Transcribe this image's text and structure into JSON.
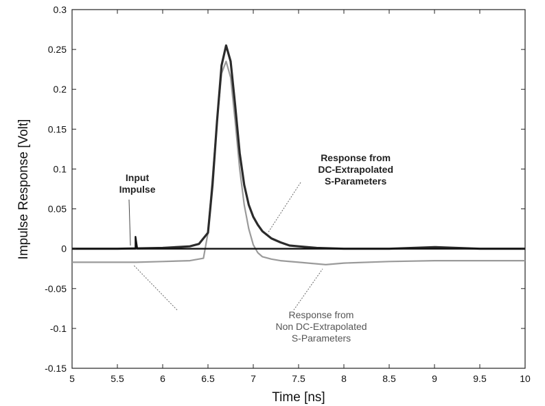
{
  "chart_data": {
    "type": "line",
    "xlabel": "Time [ns]",
    "ylabel": "Impulse Response [Volt]",
    "xlim": [
      5,
      10
    ],
    "ylim": [
      -0.15,
      0.3
    ],
    "x_ticks": [
      5,
      5.5,
      6,
      6.5,
      7,
      7.5,
      8,
      8.5,
      9,
      9.5,
      10
    ],
    "y_ticks": [
      -0.15,
      -0.1,
      -0.05,
      0,
      0.05,
      0.1,
      0.15,
      0.2,
      0.25,
      0.3
    ],
    "x_tick_labels": [
      "5",
      "5.5",
      "6",
      "6.5",
      "7",
      "7.5",
      "8",
      "8.5",
      "9",
      "9.5",
      "10"
    ],
    "y_tick_labels": [
      "-0.15",
      "-0.1",
      "-0.05",
      "0",
      "0.05",
      "0.1",
      "0.15",
      "0.2",
      "0.25",
      "0.3"
    ],
    "grid": false,
    "series": [
      {
        "color": "#9a9a9a",
        "x": [
          5.0,
          5.5,
          5.7,
          5.71,
          6.0,
          6.3,
          6.45,
          6.5,
          6.55,
          6.6,
          6.65,
          6.7,
          6.75,
          6.8,
          6.85,
          6.9,
          6.95,
          7.0,
          7.05,
          7.1,
          7.2,
          7.3,
          7.5,
          7.8,
          8.0,
          8.5,
          9.0,
          9.5,
          10.0
        ],
        "y": [
          -0.017,
          -0.017,
          -0.017,
          -0.017,
          -0.016,
          -0.015,
          -0.012,
          0.02,
          0.09,
          0.16,
          0.22,
          0.235,
          0.215,
          0.16,
          0.1,
          0.055,
          0.025,
          0.005,
          -0.005,
          -0.01,
          -0.013,
          -0.015,
          -0.017,
          -0.02,
          -0.018,
          -0.016,
          -0.015,
          -0.015,
          -0.015
        ]
      },
      {
        "color": "#2b2b2b",
        "x": [
          5.0,
          5.5,
          6.0,
          6.3,
          6.4,
          6.5,
          6.55,
          6.6,
          6.65,
          6.7,
          6.75,
          6.8,
          6.85,
          6.9,
          6.95,
          7.0,
          7.05,
          7.1,
          7.2,
          7.3,
          7.4,
          7.5,
          7.7,
          8.0,
          8.5,
          9.0,
          9.5,
          10.0
        ],
        "y": [
          0.0,
          0.0,
          0.001,
          0.003,
          0.006,
          0.02,
          0.08,
          0.16,
          0.23,
          0.255,
          0.235,
          0.18,
          0.12,
          0.08,
          0.055,
          0.04,
          0.03,
          0.022,
          0.013,
          0.008,
          0.004,
          0.003,
          0.001,
          0.0,
          0.0,
          0.002,
          0.0,
          0.0
        ]
      },
      {
        "color": "#111111",
        "x": [
          5.0,
          5.7,
          5.7,
          5.72,
          10.0
        ],
        "y": [
          0.0,
          0.0,
          0.015,
          0.0,
          0.0
        ]
      }
    ],
    "annotations": [
      {
        "lines": [
          "Input",
          "Impulse"
        ],
        "x": 5.72,
        "y": 0.085
      },
      {
        "lines": [
          "Response from",
          "DC-Extrapolated",
          "S-Parameters"
        ],
        "x": 8.13,
        "y": 0.11
      },
      {
        "lines": [
          "Response from",
          "Non DC-Extrapolated",
          "S-Parameters"
        ],
        "x": 7.75,
        "y": -0.087
      }
    ]
  }
}
